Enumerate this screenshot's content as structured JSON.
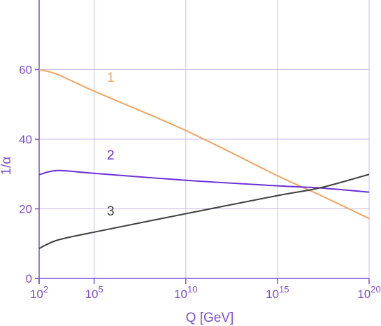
{
  "chart_data": {
    "type": "line",
    "xlabel": "Q [GeV]",
    "ylabel": "1/α",
    "x_scale": "log10",
    "xlim_exponent": [
      2,
      20
    ],
    "ylim": [
      0,
      80
    ],
    "grid": true,
    "x_ticks": [
      {
        "base": "10",
        "exp": "2",
        "value": 2
      },
      {
        "base": "10",
        "exp": "5",
        "value": 5
      },
      {
        "base": "10",
        "exp": "10",
        "value": 10
      },
      {
        "base": "10",
        "exp": "15",
        "value": 15
      },
      {
        "base": "10",
        "exp": "20",
        "value": 20
      }
    ],
    "y_ticks": [
      {
        "label": "0",
        "value": 0
      },
      {
        "label": "20",
        "value": 20
      },
      {
        "label": "40",
        "value": 40
      },
      {
        "label": "60",
        "value": 60
      }
    ],
    "colors": {
      "axis": "#7b4fd0",
      "grid": "#c9b8f0",
      "series_1": "#f4a460",
      "series_2": "#6a2fd6",
      "series_3": "#404040"
    },
    "series": [
      {
        "name": "1",
        "color": "#f4a460",
        "label_at": {
          "log10_Q": 5.9,
          "inv_alpha": 56.5
        },
        "points": [
          [
            2,
            60
          ],
          [
            3,
            58.6
          ],
          [
            5,
            53.8
          ],
          [
            10,
            42.5
          ],
          [
            15,
            29.5
          ],
          [
            17.3,
            24
          ],
          [
            20,
            17.2
          ]
        ]
      },
      {
        "name": "2",
        "color": "#6a2fd6",
        "label_at": {
          "log10_Q": 5.9,
          "inv_alpha": 34.2
        },
        "points": [
          [
            2,
            29.8
          ],
          [
            3,
            31
          ],
          [
            5,
            30.2
          ],
          [
            10,
            28.2
          ],
          [
            15,
            26.6
          ],
          [
            17.3,
            26
          ],
          [
            20,
            24.8
          ]
        ]
      },
      {
        "name": "3",
        "color": "#404040",
        "label_at": {
          "log10_Q": 5.9,
          "inv_alpha": 18.1
        },
        "points": [
          [
            2,
            8.6
          ],
          [
            3,
            11
          ],
          [
            5,
            13.3
          ],
          [
            10,
            18.6
          ],
          [
            15,
            23.8
          ],
          [
            17.3,
            26
          ],
          [
            20,
            29.9
          ]
        ]
      }
    ]
  }
}
